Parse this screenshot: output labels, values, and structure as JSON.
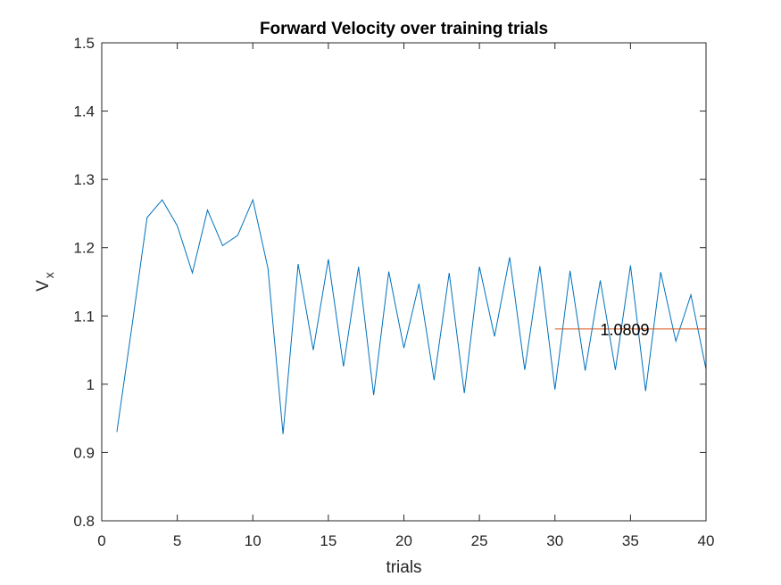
{
  "chart_data": {
    "type": "line",
    "title": "Forward Velocity over training trials",
    "xlabel": "trials",
    "ylabel": {
      "main": "V",
      "sub": "x"
    },
    "xlim": [
      0,
      40
    ],
    "ylim": [
      0.8,
      1.5
    ],
    "xticks": [
      0,
      5,
      10,
      15,
      20,
      25,
      30,
      35,
      40
    ],
    "xtick_labels": [
      "0",
      "5",
      "10",
      "15",
      "20",
      "25",
      "30",
      "35",
      "40"
    ],
    "yticks": [
      0.8,
      0.9,
      1.0,
      1.1,
      1.2,
      1.3,
      1.4,
      1.5
    ],
    "ytick_labels": [
      "0.8",
      "0.9",
      "1",
      "1.1",
      "1.2",
      "1.3",
      "1.4",
      "1.5"
    ],
    "grid": false,
    "series": [
      {
        "color": "#0072BD",
        "x": [
          1,
          2,
          3,
          4,
          5,
          6,
          7,
          8,
          9,
          10,
          11,
          12,
          13,
          14,
          15,
          16,
          17,
          18,
          19,
          20,
          21,
          22,
          23,
          24,
          25,
          26,
          27,
          28,
          29,
          30,
          31,
          32,
          33,
          34,
          35,
          36,
          37,
          38,
          39,
          40
        ],
        "y": [
          0.93,
          1.085,
          1.244,
          1.27,
          1.232,
          1.163,
          1.255,
          1.203,
          1.218,
          1.27,
          1.17,
          0.927,
          1.176,
          1.05,
          1.183,
          1.026,
          1.172,
          0.984,
          1.165,
          1.053,
          1.147,
          1.006,
          1.163,
          0.987,
          1.172,
          1.07,
          1.186,
          1.021,
          1.173,
          0.992,
          1.166,
          1.02,
          1.152,
          1.021,
          1.174,
          0.99,
          1.164,
          1.063,
          1.131,
          1.022
        ]
      },
      {
        "color": "#D95319",
        "x": [
          30,
          40
        ],
        "y": [
          1.0809,
          1.0809
        ]
      }
    ],
    "annotations": [
      {
        "text": "1.0809",
        "x": 33,
        "y": 1.0809
      }
    ]
  }
}
